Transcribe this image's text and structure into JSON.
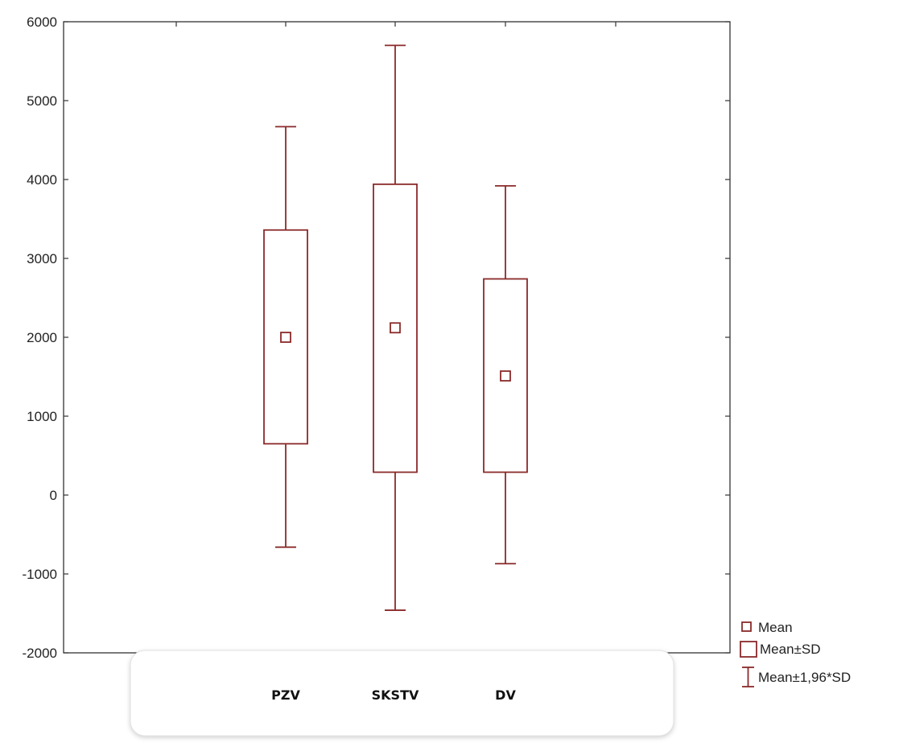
{
  "chart_data": {
    "type": "box",
    "title": "",
    "xlabel": "",
    "ylabel": "",
    "ylim": [
      -2000,
      6000
    ],
    "yticks": [
      -2000,
      -1000,
      0,
      1000,
      2000,
      3000,
      4000,
      5000,
      6000
    ],
    "categories": [
      "PZV",
      "SKSTV",
      "DV"
    ],
    "series": [
      {
        "category": "PZV",
        "mean": 2000,
        "sd_low": 650,
        "sd_high": 3360,
        "ci_low": -660,
        "ci_high": 4670
      },
      {
        "category": "SKSTV",
        "mean": 2120,
        "sd_low": 290,
        "sd_high": 3940,
        "ci_low": -1460,
        "ci_high": 5700
      },
      {
        "category": "DV",
        "mean": 1510,
        "sd_low": 290,
        "sd_high": 2740,
        "ci_low": -870,
        "ci_high": 3920
      }
    ],
    "legend": {
      "position": "bottom-right",
      "entries": [
        "Mean",
        "Mean±SD",
        "Mean±1,96*SD"
      ]
    },
    "grid": false,
    "color": "#8b2a2a"
  }
}
